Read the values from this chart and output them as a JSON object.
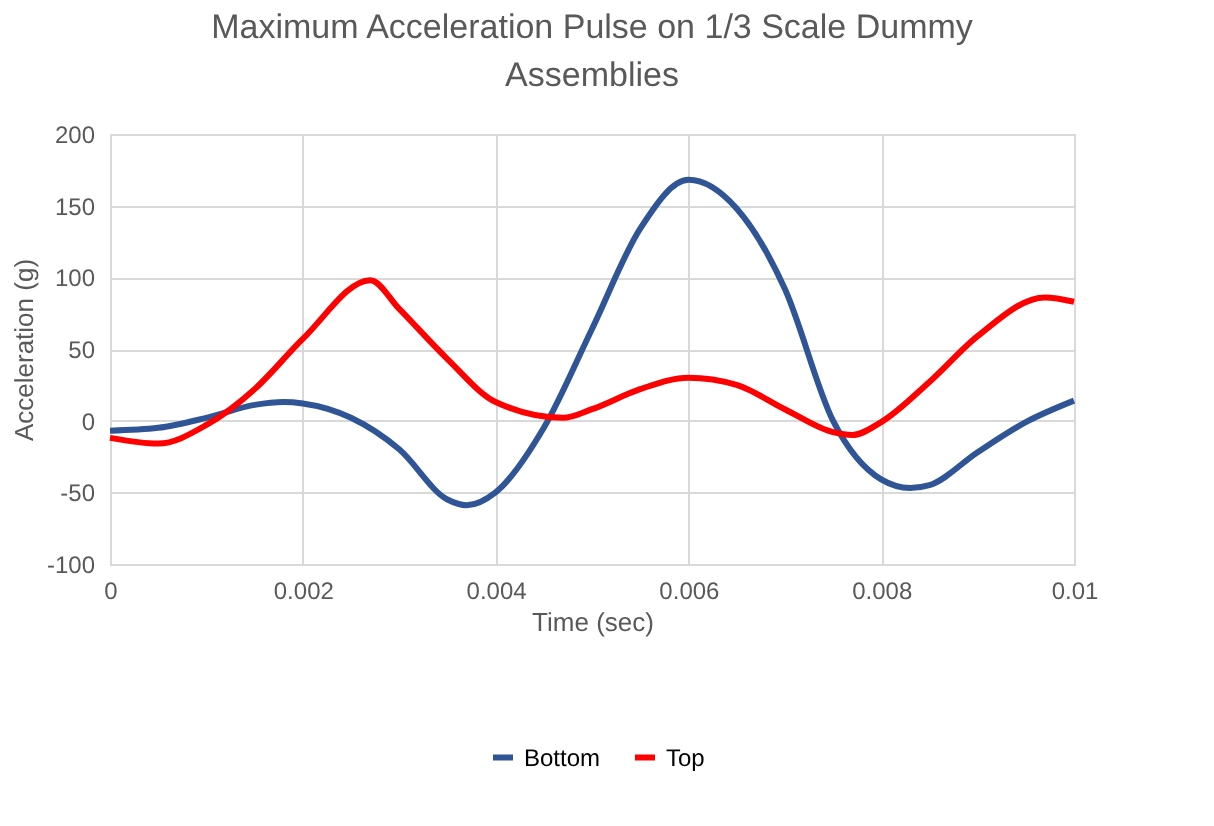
{
  "chart_data": {
    "type": "line",
    "title": "Maximum Acceleration Pulse on 1/3 Scale Dummy Assemblies",
    "xlabel": "Time (sec)",
    "ylabel": "Acceleration (g)",
    "xlim": [
      0,
      0.01
    ],
    "xticks": [
      0,
      0.002,
      0.004,
      0.006,
      0.008,
      0.01
    ],
    "ylim": [
      -100,
      200
    ],
    "yticks": [
      -100,
      -50,
      0,
      50,
      100,
      150,
      200
    ],
    "grid": true,
    "legend": "bottom",
    "marker": "none",
    "line_style": "solid",
    "series": [
      {
        "name": "Bottom",
        "color": "#2f5597",
        "x": [
          0,
          0.0005,
          0.001,
          0.0015,
          0.0018,
          0.002,
          0.0025,
          0.003,
          0.0035,
          0.0037,
          0.004,
          0.0045,
          0.005,
          0.0055,
          0.006,
          0.0065,
          0.007,
          0.0075,
          0.008,
          0.0083,
          0.0085,
          0.009,
          0.0095,
          0.01
        ],
        "values": [
          -7,
          -5,
          2,
          11,
          13,
          12,
          2,
          -20,
          -55,
          -59,
          -50,
          -5,
          64,
          134,
          168,
          148,
          92,
          0,
          -41,
          -47,
          -45,
          -22,
          -1,
          14
        ]
      },
      {
        "name": "Top",
        "color": "#ff0000",
        "x": [
          0,
          0.0005,
          0.001,
          0.0015,
          0.002,
          0.0027,
          0.003,
          0.0035,
          0.004,
          0.0047,
          0.005,
          0.0055,
          0.006,
          0.0065,
          0.007,
          0.0075,
          0.0077,
          0.008,
          0.0085,
          0.009,
          0.0097,
          0.01
        ],
        "values": [
          -12,
          -16,
          -3,
          22,
          57,
          98,
          78,
          43,
          13,
          2,
          8,
          22,
          30,
          25,
          8,
          -8,
          -10,
          -1,
          27,
          59,
          86,
          83
        ]
      }
    ]
  }
}
